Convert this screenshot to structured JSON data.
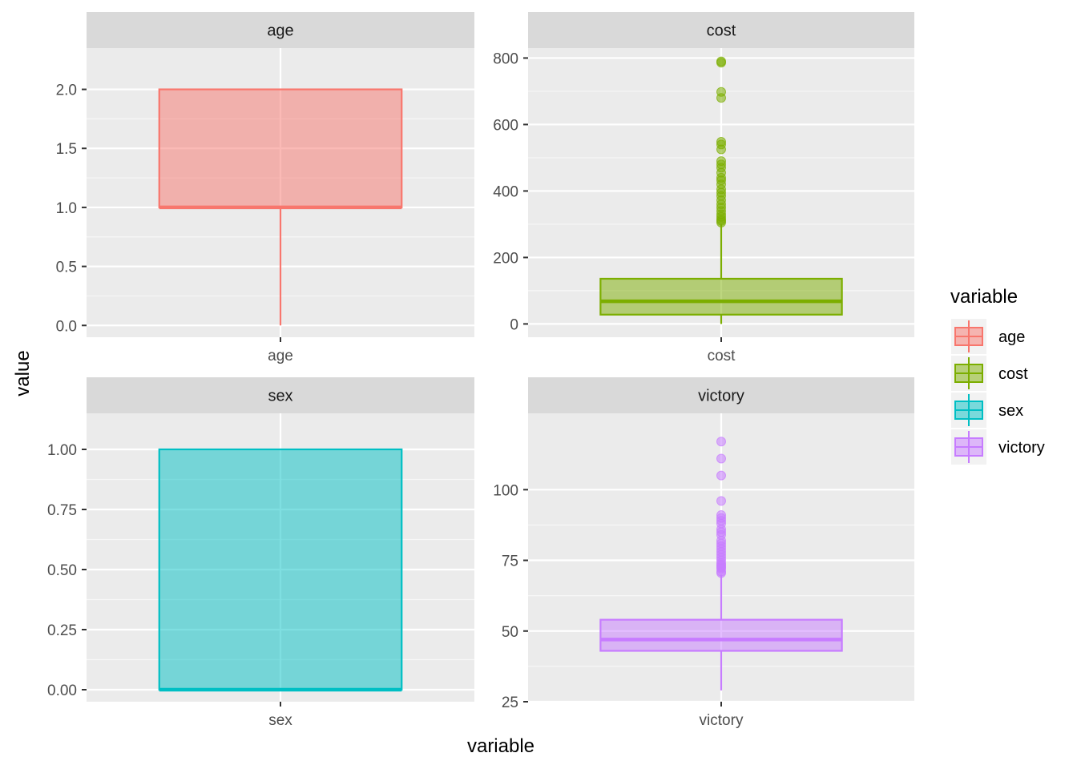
{
  "chart_data": {
    "type": "box",
    "xlabel": "variable",
    "ylabel": "value",
    "legend": {
      "title": "variable",
      "position": "right",
      "entries": [
        {
          "label": "age",
          "color": "#F8766D"
        },
        {
          "label": "cost",
          "color": "#7CAE00"
        },
        {
          "label": "sex",
          "color": "#00BFC4"
        },
        {
          "label": "victory",
          "color": "#C77CFF"
        }
      ]
    },
    "facets": [
      {
        "strip": "age",
        "category": "age",
        "color": "#F8766D",
        "ylim": [
          -0.1,
          2.35
        ],
        "yticks": [
          0.0,
          0.5,
          1.0,
          1.5,
          2.0
        ],
        "yticklabels": [
          "0.0",
          "0.5",
          "1.0",
          "1.5",
          "2.0"
        ],
        "box": {
          "min": 0,
          "q1": 1,
          "median": 1,
          "q3": 2,
          "max": 2
        },
        "outliers": []
      },
      {
        "strip": "cost",
        "category": "cost",
        "color": "#7CAE00",
        "ylim": [
          -40,
          830
        ],
        "yticks": [
          0,
          200,
          400,
          600,
          800
        ],
        "yticklabels": [
          "0",
          "200",
          "400",
          "600",
          "800"
        ],
        "box": {
          "min": 0,
          "q1": 28,
          "median": 68,
          "q3": 136,
          "max": 300
        },
        "outliers": [
          305,
          310,
          315,
          322,
          330,
          340,
          350,
          360,
          372,
          385,
          395,
          405,
          420,
          432,
          440,
          455,
          470,
          480,
          490,
          525,
          540,
          548,
          680,
          698,
          786,
          790
        ]
      },
      {
        "strip": "sex",
        "category": "sex",
        "color": "#00BFC4",
        "ylim": [
          -0.05,
          1.15
        ],
        "yticks": [
          0.0,
          0.25,
          0.5,
          0.75,
          1.0
        ],
        "yticklabels": [
          "0.00",
          "0.25",
          "0.50",
          "0.75",
          "1.00"
        ],
        "box": {
          "min": 0,
          "q1": 0,
          "median": 0,
          "q3": 1,
          "max": 1
        },
        "outliers": []
      },
      {
        "strip": "victory",
        "category": "victory",
        "color": "#C77CFF",
        "ylim": [
          25,
          127
        ],
        "yticks": [
          25,
          50,
          75,
          100
        ],
        "yticklabels": [
          "25",
          "50",
          "75",
          "100"
        ],
        "box": {
          "min": 29,
          "q1": 43,
          "median": 47,
          "q3": 54,
          "max": 70
        },
        "outliers": [
          70.5,
          71,
          72,
          72.5,
          73,
          73.5,
          74,
          75,
          76,
          77,
          78,
          79,
          80,
          81,
          82,
          84,
          85,
          86,
          88,
          89,
          90,
          91,
          96,
          105,
          111,
          117
        ]
      }
    ]
  }
}
